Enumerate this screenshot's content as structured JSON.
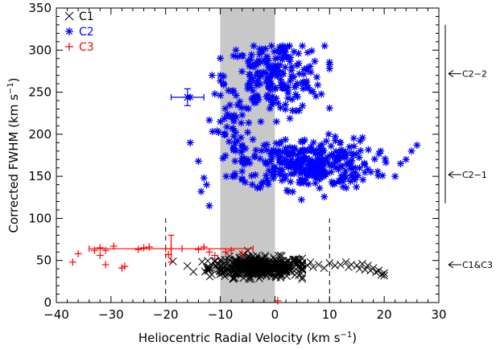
{
  "chart_data": {
    "type": "scatter",
    "xlabel_text": "Heliocentric Radial Velocity (km s",
    "xlabel_sup": "−1",
    "xlabel_close": ")",
    "ylabel_text": "Corrected FWHM (km s",
    "ylabel_sup": "−1",
    "ylabel_close": ")",
    "xlim": [
      -40,
      30
    ],
    "ylim": [
      0,
      350
    ],
    "x_ticks": [
      -40,
      -30,
      -20,
      -10,
      0,
      10,
      20,
      30
    ],
    "x_tick_labels": [
      "−40",
      "−30",
      "−20",
      "−10",
      "0",
      "10",
      "20",
      "30"
    ],
    "y_ticks": [
      0,
      50,
      100,
      150,
      200,
      250,
      300,
      350
    ],
    "y_tick_labels": [
      "0",
      "50",
      "100",
      "150",
      "200",
      "250",
      "300",
      "350"
    ],
    "grid": false,
    "legend_position": "top-left",
    "shaded_band": {
      "x0": -10,
      "x1": 0,
      "color": "#c8c8c8"
    },
    "dashed_lines": [
      {
        "x": -20,
        "y0": 0,
        "y1": 100
      },
      {
        "x": 10,
        "y0": 0,
        "y1": 100
      }
    ],
    "series": [
      {
        "name": "C1",
        "marker": "x",
        "color": "#000000",
        "cluster": {
          "x_mean": -3,
          "x_sd": 4.5,
          "y_mean": 42,
          "y_sd": 6,
          "n": 420,
          "x_min": -19,
          "x_max": 5
        },
        "points": [
          [
            5,
            46
          ],
          [
            6,
            44
          ],
          [
            6.5,
            48
          ],
          [
            7,
            42
          ],
          [
            8,
            45
          ],
          [
            9,
            41
          ],
          [
            10,
            47
          ],
          [
            11,
            44
          ],
          [
            12,
            45
          ],
          [
            13,
            48
          ],
          [
            13.5,
            42
          ],
          [
            14,
            45
          ],
          [
            15,
            44
          ],
          [
            15.5,
            40
          ],
          [
            16,
            46
          ],
          [
            16.5,
            39
          ],
          [
            17,
            44
          ],
          [
            17.5,
            38
          ],
          [
            18,
            41
          ],
          [
            18.5,
            36
          ],
          [
            19,
            38
          ],
          [
            19.5,
            33
          ],
          [
            20,
            32
          ],
          [
            20,
            35
          ]
        ]
      },
      {
        "name": "C2",
        "marker": "asterisk",
        "color": "#0000ff",
        "clusters": [
          {
            "x_mean": 0,
            "x_sd": 4.5,
            "y_mean": 268,
            "y_sd": 22,
            "n": 210,
            "x_min": -10,
            "x_max": 10,
            "y_min": 215,
            "y_max": 305
          },
          {
            "x_mean": 6,
            "x_sd": 6,
            "y_mean": 165,
            "y_sd": 15,
            "n": 330,
            "x_min": -6,
            "x_max": 26,
            "y_min": 120,
            "y_max": 215
          },
          {
            "x_mean": -8,
            "x_sd": 2,
            "y_mean": 205,
            "y_sd": 30,
            "n": 50,
            "x_min": -12,
            "x_max": -3,
            "y_min": 150,
            "y_max": 260
          }
        ],
        "points": [
          [
            -15.5,
            190
          ],
          [
            -14,
            168
          ],
          [
            -13.5,
            132
          ],
          [
            -13,
            148
          ],
          [
            -12.5,
            140
          ],
          [
            -12,
            115
          ],
          [
            -11.5,
            270
          ],
          [
            -11,
            248
          ],
          [
            -15.5,
            244
          ],
          [
            24,
            170
          ],
          [
            25,
            180
          ],
          [
            26,
            187
          ],
          [
            23,
            165
          ],
          [
            22,
            150
          ]
        ],
        "errorbar": {
          "x": -16,
          "y": 244,
          "xerr": 3,
          "yerr": 10
        }
      },
      {
        "name": "C3",
        "marker": "plus",
        "color": "#ff0000",
        "points": [
          [
            -37,
            48
          ],
          [
            -36,
            58
          ],
          [
            -33,
            62
          ],
          [
            -32,
            65
          ],
          [
            -32,
            56
          ],
          [
            -31,
            62
          ],
          [
            -31,
            45
          ],
          [
            -29.5,
            67
          ],
          [
            -28,
            41
          ],
          [
            -27.5,
            43
          ],
          [
            -25,
            63
          ],
          [
            -24,
            65
          ],
          [
            -23,
            66
          ],
          [
            -20,
            64
          ],
          [
            -19.5,
            57
          ],
          [
            -17,
            64
          ],
          [
            -14,
            63
          ],
          [
            -13,
            66
          ],
          [
            -12,
            60
          ],
          [
            -11,
            56
          ],
          [
            -9,
            60
          ],
          [
            -8,
            62
          ],
          [
            -6,
            58
          ],
          [
            0.5,
            2
          ]
        ],
        "errorbar": {
          "x": -19,
          "y": 64,
          "xerr_low": 15,
          "xerr_high": 15,
          "yerr": 16
        }
      }
    ],
    "annotations": [
      {
        "text": "C2−2",
        "y": 272
      },
      {
        "text": "C2−1",
        "y": 152
      },
      {
        "text": "C1&C3",
        "y": 45
      }
    ],
    "bracket": {
      "y0": 118,
      "y1": 330
    }
  }
}
